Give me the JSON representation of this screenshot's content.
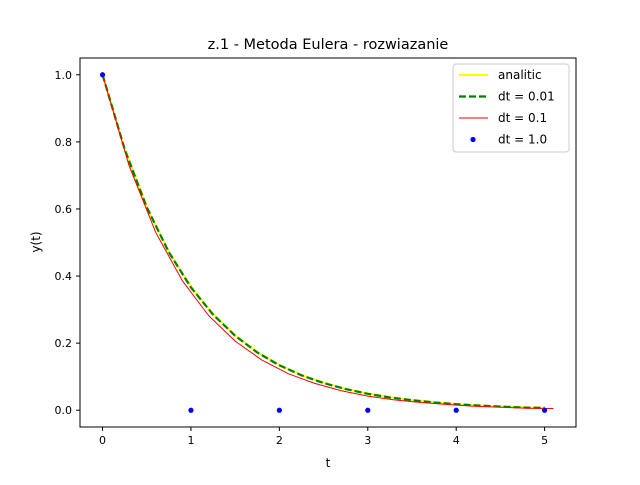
{
  "chart_data": {
    "type": "line",
    "title": "z.1 - Metoda Eulera - rozwiazanie",
    "xlabel": "t",
    "ylabel": "y(t)",
    "xlim": [
      -0.255,
      5.355
    ],
    "ylim": [
      -0.05,
      1.05
    ],
    "xticks": [
      0,
      1,
      2,
      3,
      4,
      5
    ],
    "xtick_labels": [
      "0",
      "1",
      "2",
      "3",
      "4",
      "5"
    ],
    "yticks": [
      0.0,
      0.2,
      0.4,
      0.6,
      0.8,
      1.0
    ],
    "ytick_labels": [
      "0.0",
      "0.2",
      "0.4",
      "0.6",
      "0.8",
      "1.0"
    ],
    "grid": false,
    "legend_position": "top-right",
    "series": [
      {
        "name": "analitic",
        "style": "solid",
        "color": "#ffff00",
        "x": [
          0,
          0.25,
          0.5,
          0.75,
          1,
          1.25,
          1.5,
          1.75,
          2,
          2.25,
          2.5,
          2.75,
          3,
          3.25,
          3.5,
          3.75,
          4,
          4.25,
          4.5,
          4.75,
          5
        ],
        "y": [
          1.0,
          0.779,
          0.607,
          0.472,
          0.368,
          0.287,
          0.223,
          0.174,
          0.135,
          0.105,
          0.082,
          0.064,
          0.05,
          0.039,
          0.03,
          0.024,
          0.018,
          0.014,
          0.011,
          0.009,
          0.007
        ]
      },
      {
        "name": "dt = 0.01",
        "style": "dashed",
        "color": "#008000",
        "x": [
          0,
          0.25,
          0.5,
          0.75,
          1,
          1.25,
          1.5,
          1.75,
          2,
          2.25,
          2.5,
          2.75,
          3,
          3.25,
          3.5,
          3.75,
          4,
          4.25,
          4.5,
          4.75,
          5
        ],
        "y": [
          1.0,
          0.778,
          0.605,
          0.471,
          0.366,
          0.285,
          0.222,
          0.172,
          0.134,
          0.104,
          0.081,
          0.063,
          0.049,
          0.038,
          0.03,
          0.023,
          0.018,
          0.014,
          0.011,
          0.008,
          0.007
        ]
      },
      {
        "name": "dt = 0.1",
        "style": "solid",
        "color": "#ff0000",
        "x": [
          0,
          0.3,
          0.6,
          0.9,
          1.2,
          1.5,
          1.8,
          2.1,
          2.4,
          2.7,
          3.0,
          3.3,
          3.6,
          3.9,
          4.2,
          4.5,
          4.8,
          5.1
        ],
        "y": [
          1.0,
          0.729,
          0.531,
          0.387,
          0.282,
          0.206,
          0.15,
          0.109,
          0.08,
          0.058,
          0.042,
          0.031,
          0.023,
          0.017,
          0.012,
          0.009,
          0.006,
          0.005
        ]
      },
      {
        "name": "dt = 1.0",
        "style": "points",
        "color": "#0000ff",
        "x": [
          0,
          1,
          2,
          3,
          4,
          5
        ],
        "y": [
          1.0,
          0.0,
          0.0,
          0.0,
          0.0,
          0.0
        ]
      }
    ]
  }
}
